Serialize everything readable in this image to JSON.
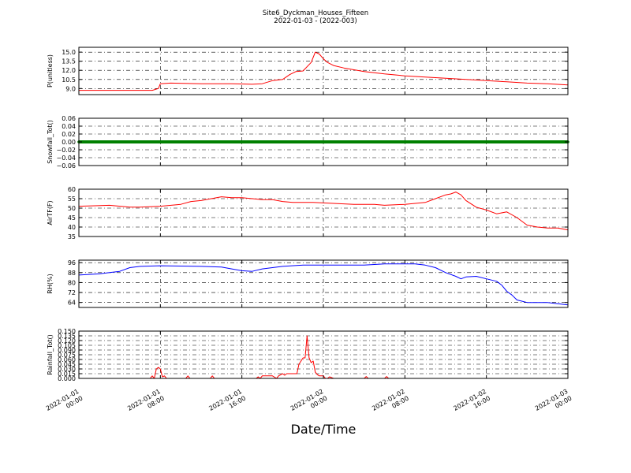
{
  "figure": {
    "title_line1": "Site6_Dyckman_Houses_Fifteen",
    "title_line2": "2022-01-03 - (2022-003)",
    "xlabel": "Date/Time"
  },
  "chart_data": [
    {
      "type": "line",
      "ylabel": "P(unitless)",
      "color": "#ff0000",
      "xlim": [
        0,
        48
      ],
      "ylim": [
        8.0,
        15.8
      ],
      "yticks": [
        9.0,
        10.5,
        12.0,
        13.5,
        15.0
      ],
      "ytick_labels": [
        "9.0",
        "10.5",
        "12.0",
        "13.5",
        "15.0"
      ],
      "x": [
        0,
        2,
        4,
        6,
        7.2,
        7.8,
        8.0,
        9,
        12,
        15,
        17,
        18,
        19,
        20,
        20.7,
        21.3,
        22,
        22.8,
        23.2,
        23.6,
        24.0,
        24.4,
        25,
        26,
        28,
        30,
        32,
        34,
        36,
        38,
        40,
        42,
        44,
        46,
        48
      ],
      "y": [
        8.7,
        8.7,
        8.7,
        8.7,
        8.7,
        9.0,
        9.8,
        9.9,
        9.8,
        9.8,
        9.7,
        9.8,
        10.3,
        10.5,
        11.3,
        11.8,
        11.9,
        13.3,
        15.0,
        14.7,
        13.9,
        13.3,
        12.8,
        12.4,
        11.8,
        11.4,
        11.1,
        10.9,
        10.7,
        10.5,
        10.3,
        10.1,
        9.9,
        9.8,
        9.6
      ]
    },
    {
      "type": "line",
      "ylabel": "Snowfall_Tot()",
      "color": "#008000",
      "xlim": [
        0,
        48
      ],
      "ylim": [
        -0.06,
        0.06
      ],
      "yticks": [
        -0.06,
        -0.04,
        -0.02,
        0.0,
        0.02,
        0.04,
        0.06
      ],
      "ytick_labels": [
        "−0.06",
        "−0.04",
        "−0.02",
        "0.00",
        "0.02",
        "0.04",
        "0.06"
      ],
      "x": [
        0,
        48
      ],
      "y": [
        0.0,
        0.0
      ]
    },
    {
      "type": "line",
      "ylabel": "AirTF(F)",
      "color": "#ff0000",
      "xlim": [
        0,
        48
      ],
      "ylim": [
        35,
        60
      ],
      "yticks": [
        35,
        40,
        45,
        50,
        55,
        60
      ],
      "ytick_labels": [
        "35",
        "40",
        "45",
        "50",
        "55",
        "60"
      ],
      "x": [
        0,
        3,
        5,
        6,
        8,
        10,
        11,
        12,
        13,
        14,
        15,
        16,
        17,
        18,
        19,
        20,
        21,
        23,
        25,
        27,
        29,
        30,
        32,
        33,
        34,
        35,
        36,
        36.5,
        37,
        37.5,
        38,
        39,
        40,
        41,
        42,
        43,
        44,
        45,
        46,
        47,
        48
      ],
      "y": [
        51,
        51.5,
        50.5,
        50.5,
        51,
        52,
        53.5,
        54,
        55,
        56,
        55.5,
        55.5,
        55,
        54.5,
        54.5,
        53.5,
        53,
        53,
        52.5,
        52,
        52,
        51.5,
        52,
        52.5,
        53,
        55,
        57,
        57.5,
        58.5,
        57,
        54,
        50.5,
        49,
        47,
        48,
        45,
        41,
        40,
        39.5,
        39.5,
        38.5
      ]
    },
    {
      "type": "line",
      "ylabel": "RH(%)",
      "color": "#0000ff",
      "xlim": [
        0,
        48
      ],
      "ylim": [
        60,
        98
      ],
      "yticks": [
        64,
        72,
        80,
        88,
        96
      ],
      "ytick_labels": [
        "64",
        "72",
        "80",
        "88",
        "96"
      ],
      "x": [
        0,
        2,
        3,
        4,
        5,
        6,
        8,
        12,
        14,
        15,
        16,
        17,
        18,
        20,
        22,
        24,
        26,
        28,
        30,
        32,
        33,
        34,
        35,
        36,
        37,
        37.5,
        38,
        39,
        40,
        41,
        41.5,
        42,
        42.5,
        43,
        44,
        46,
        47,
        48
      ],
      "y": [
        86,
        87,
        88,
        89,
        92,
        93,
        93.5,
        93,
        92.5,
        91,
        89.5,
        89,
        91,
        93,
        94,
        94,
        94,
        94,
        95,
        95,
        95,
        94,
        92,
        88,
        85,
        83,
        84.5,
        85,
        83,
        81,
        78,
        73,
        70,
        66,
        64,
        64,
        63,
        62
      ]
    },
    {
      "type": "line",
      "ylabel": "Rainfall_Tot()",
      "color": "#ff0000",
      "xlim": [
        0,
        48
      ],
      "ylim": [
        0.0,
        0.15
      ],
      "yticks": [
        0.0,
        0.015,
        0.03,
        0.045,
        0.06,
        0.075,
        0.09,
        0.105,
        0.12,
        0.135,
        0.15
      ],
      "ytick_labels": [
        "0.000",
        "0.015",
        "0.030",
        "0.045",
        "0.060",
        "0.075",
        "0.090",
        "0.105",
        "0.120",
        "0.135",
        "0.150"
      ],
      "x": [
        0,
        6.8,
        7.0,
        7.2,
        7.4,
        7.6,
        7.8,
        8.0,
        8.2,
        8.4,
        8.6,
        10.5,
        10.7,
        10.9,
        12.9,
        13.1,
        13.3,
        17.4,
        17.6,
        17.8,
        18.0,
        19.0,
        19.4,
        19.6,
        20.0,
        20.2,
        20.4,
        20.6,
        21.0,
        21.4,
        21.6,
        22.0,
        22.2,
        22.4,
        22.6,
        22.8,
        23.0,
        23.2,
        23.4,
        23.6,
        23.8,
        24.0,
        24.2,
        24.4,
        24.6,
        25.0,
        25.2,
        25.4,
        28.0,
        28.2,
        28.4,
        30.0,
        30.2,
        30.4,
        48
      ],
      "y": [
        0,
        0,
        0,
        0.008,
        0,
        0.03,
        0.035,
        0.03,
        0.005,
        0.008,
        0,
        0,
        0.008,
        0,
        0,
        0.008,
        0,
        0,
        0.005,
        0,
        0.008,
        0.008,
        0,
        0.008,
        0.015,
        0.01,
        0.015,
        0.015,
        0.015,
        0.015,
        0.045,
        0.065,
        0.065,
        0.135,
        0.065,
        0.05,
        0.055,
        0.02,
        0.012,
        0.008,
        0.008,
        0.008,
        0,
        0,
        0.005,
        0,
        0,
        0,
        0,
        0.006,
        0,
        0,
        0.006,
        0,
        0
      ]
    }
  ],
  "xaxis": {
    "ticks": [
      0,
      8,
      16,
      24,
      32,
      40,
      48
    ],
    "labels": [
      [
        "2022-01-01",
        "00:00"
      ],
      [
        "2022-01-01",
        "08:00"
      ],
      [
        "2022-01-01",
        "16:00"
      ],
      [
        "2022-01-02",
        "00:00"
      ],
      [
        "2022-01-02",
        "08:00"
      ],
      [
        "2022-01-02",
        "16:00"
      ],
      [
        "2022-01-03",
        "00:00"
      ]
    ]
  }
}
